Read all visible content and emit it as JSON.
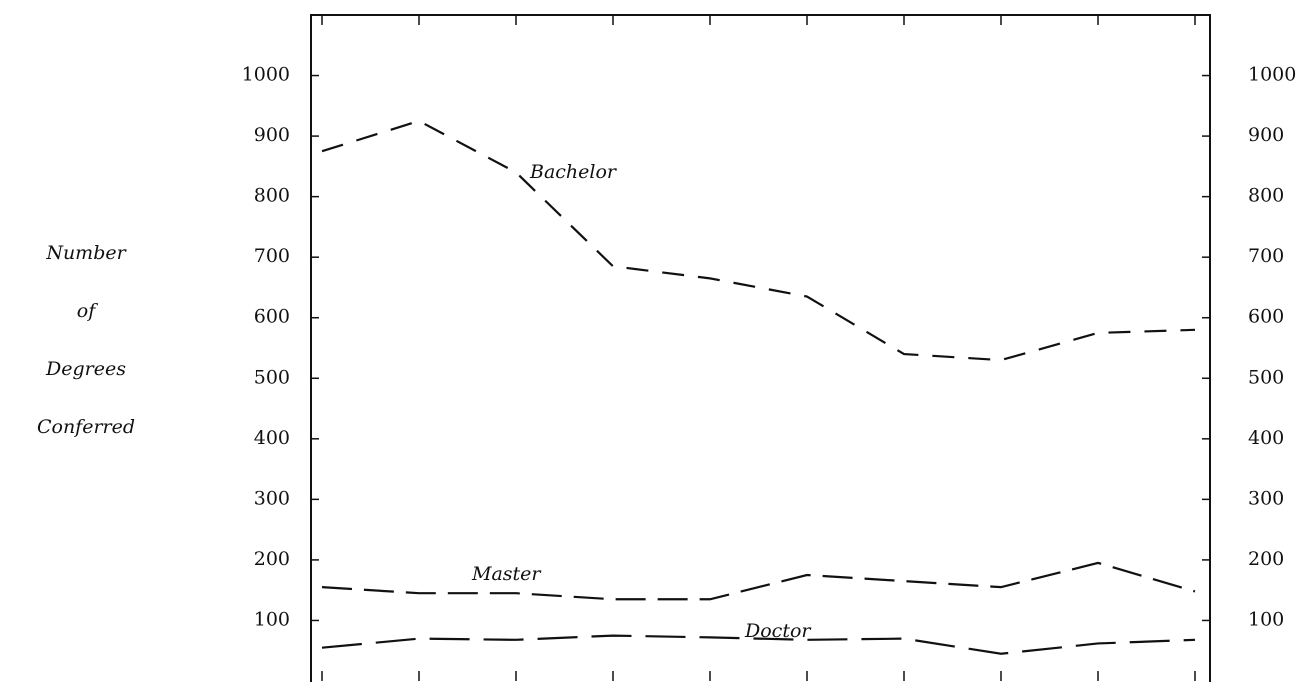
{
  "chart_data": {
    "type": "line",
    "y_label": [
      "Number",
      "of",
      "Degrees",
      "Conferred"
    ],
    "categories": [
      null,
      null,
      null,
      null,
      null,
      null,
      null,
      null,
      null,
      null
    ],
    "series": [
      {
        "name": "Bachelor",
        "color": "#111111",
        "values": [
          875,
          925,
          840,
          685,
          665,
          635,
          540,
          530,
          575,
          580
        ]
      },
      {
        "name": "Master",
        "color": "#111111",
        "values": [
          155,
          145,
          145,
          135,
          135,
          175,
          165,
          155,
          195,
          148
        ]
      },
      {
        "name": "Doctor",
        "color": "#111111",
        "values": [
          55,
          70,
          68,
          75,
          72,
          68,
          70,
          45,
          62,
          68
        ]
      }
    ],
    "ylim": [
      0,
      1100
    ],
    "yticks": [
      100,
      200,
      300,
      400,
      500,
      600,
      700,
      800,
      900,
      1000
    ],
    "right_axis": true
  }
}
